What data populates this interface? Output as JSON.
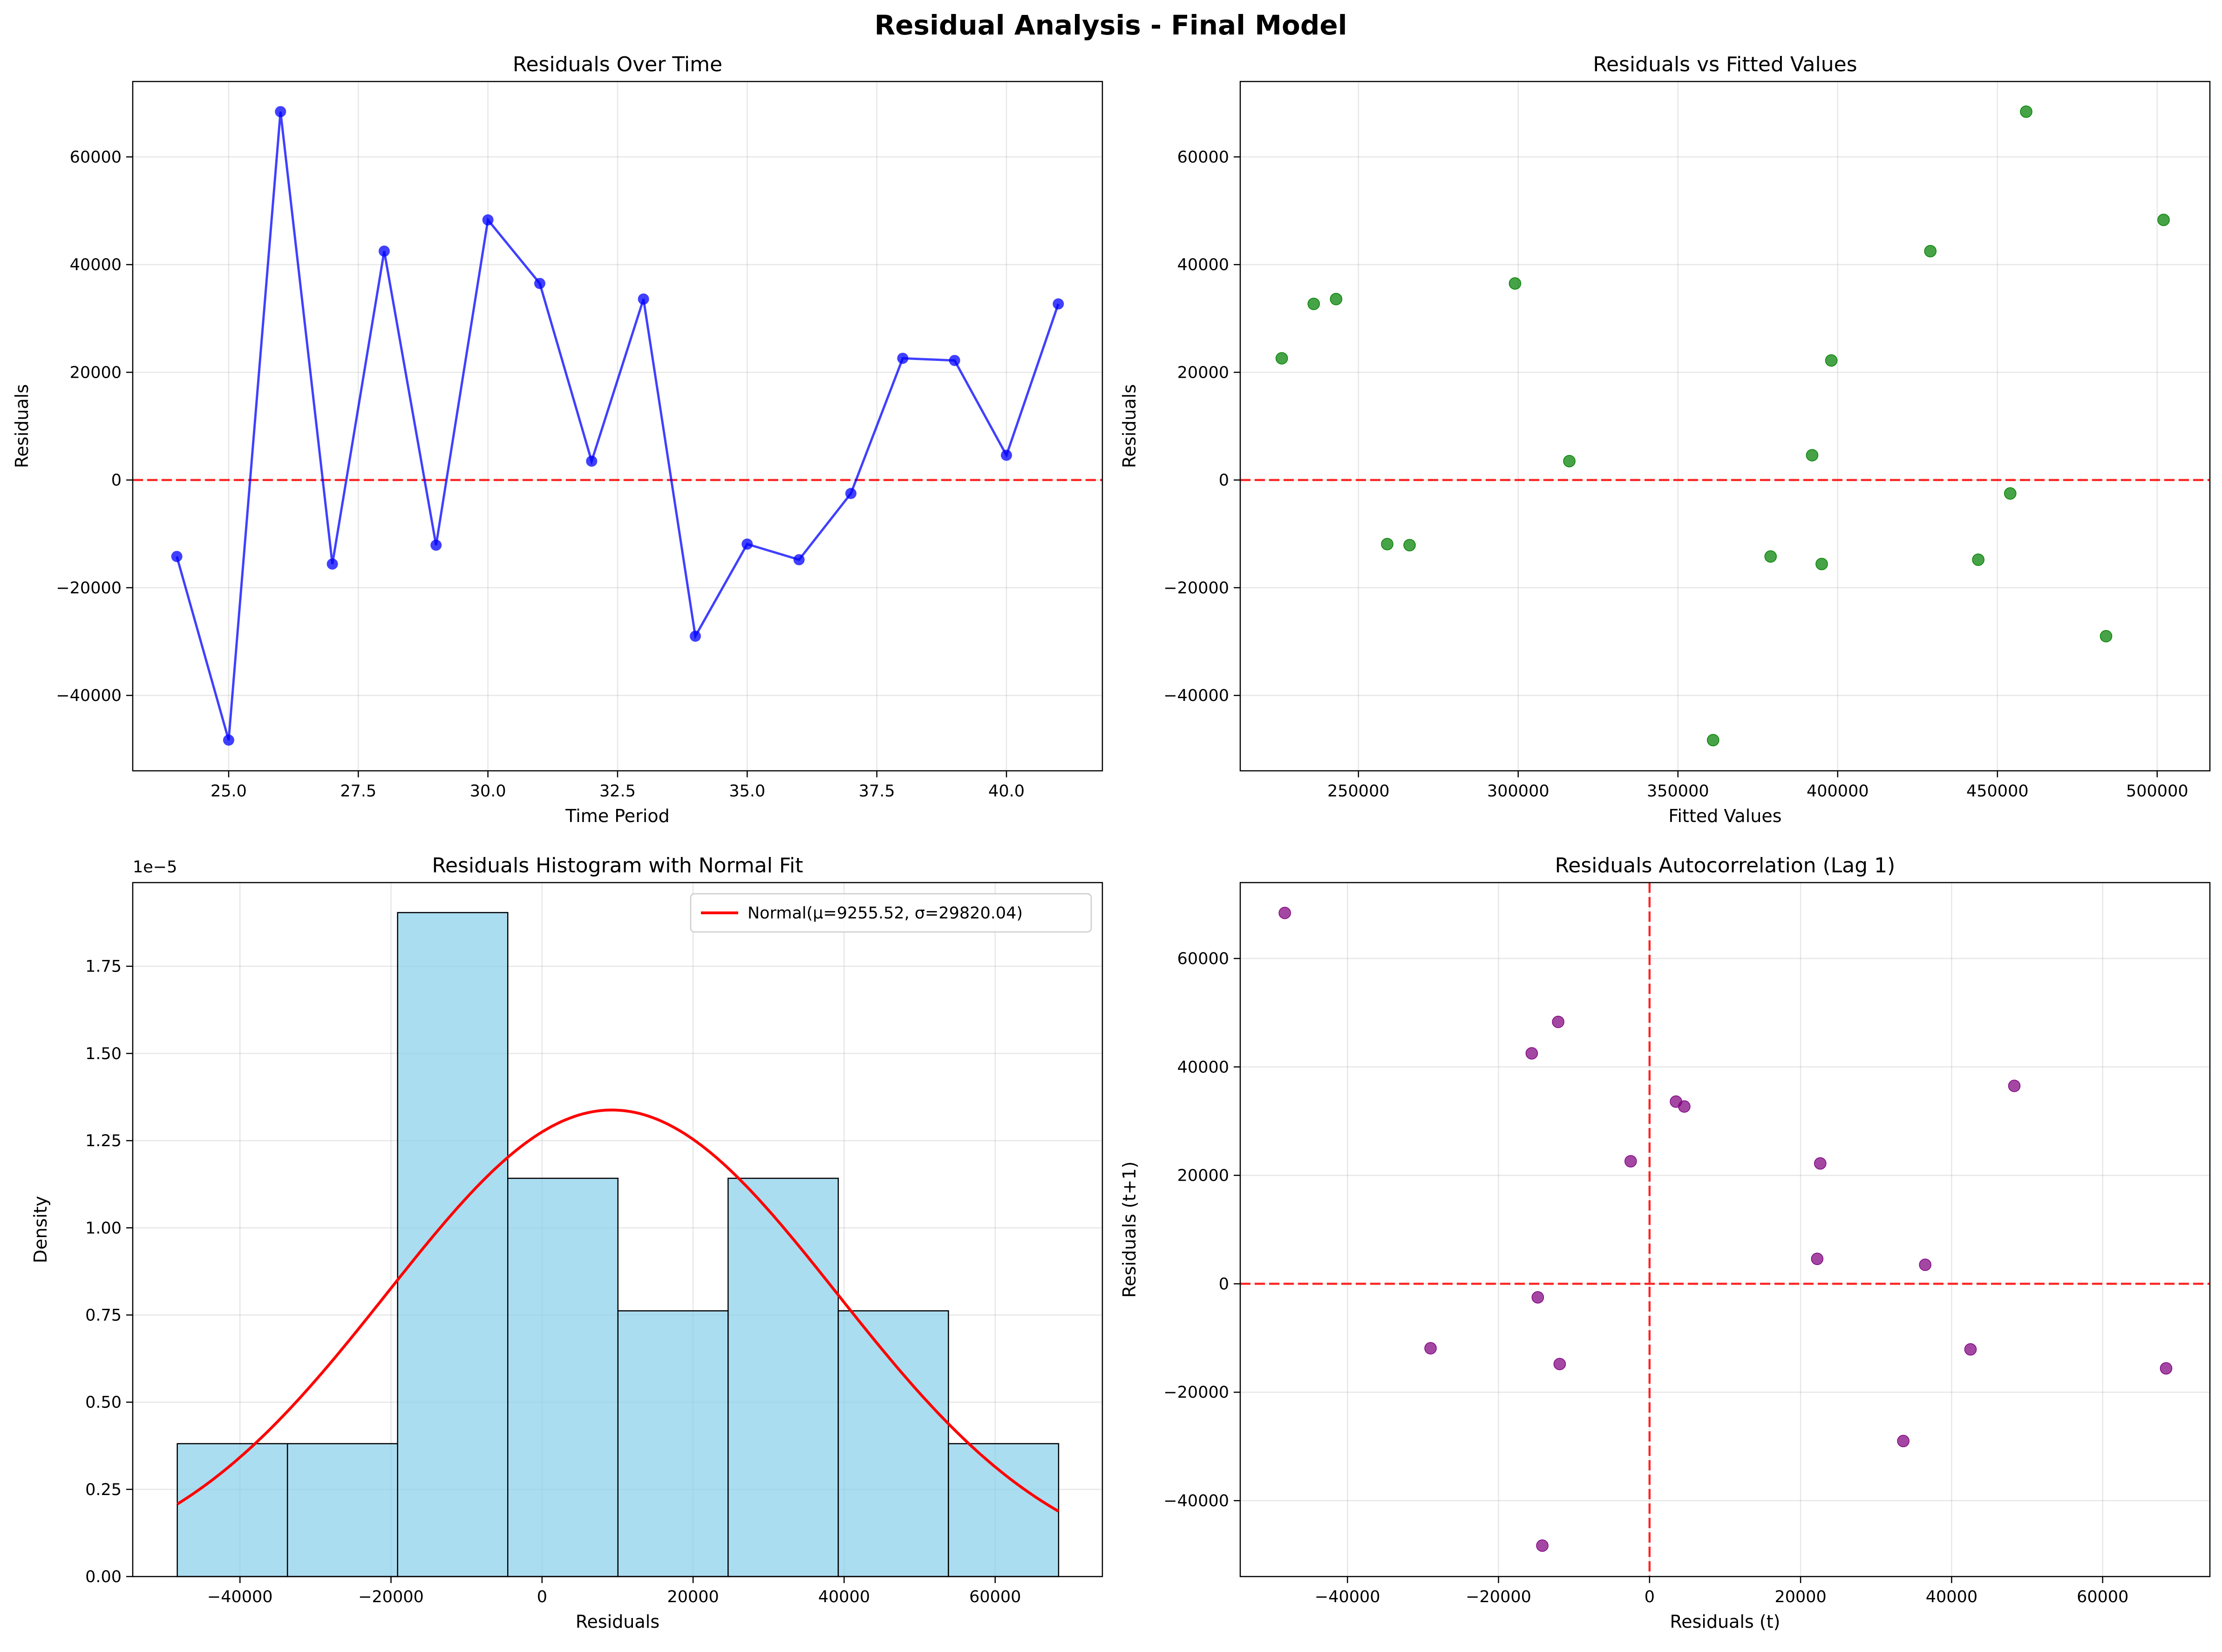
{
  "figure_title": "Residual Analysis - Final Model",
  "colors": {
    "line_blue": "#0000ff",
    "scatter_green": "#008000",
    "scatter_purple": "#800080",
    "hist_fill": "#87ceeb",
    "normal_curve": "#ff0000",
    "zero_line": "#ff0000"
  },
  "chart_data": [
    {
      "id": "over_time",
      "type": "line",
      "title": "Residuals Over Time",
      "xlabel": "Time Period",
      "ylabel": "Residuals",
      "xlim": [
        23.15,
        41.85
      ],
      "ylim": [
        -54000,
        74000
      ],
      "xticks": [
        25.0,
        27.5,
        30.0,
        32.5,
        35.0,
        37.5,
        40.0
      ],
      "xtick_labels": [
        "25.0",
        "27.5",
        "30.0",
        "32.5",
        "35.0",
        "37.5",
        "40.0"
      ],
      "yticks": [
        -40000,
        -20000,
        0,
        20000,
        40000,
        60000
      ],
      "ytick_labels": [
        "−40000",
        "−20000",
        "0",
        "20000",
        "40000",
        "60000"
      ],
      "grid": true,
      "reference_line_y": 0,
      "x": [
        24,
        25,
        26,
        27,
        28,
        29,
        30,
        31,
        32,
        33,
        34,
        35,
        36,
        37,
        38,
        39,
        40,
        41
      ],
      "y": [
        -14200,
        -48300,
        68400,
        -15600,
        42500,
        -12100,
        48300,
        36500,
        3500,
        33600,
        -29000,
        -11900,
        -14800,
        -2500,
        22600,
        22200,
        4600,
        32700
      ]
    },
    {
      "id": "vs_fitted",
      "type": "scatter",
      "title": "Residuals vs Fitted Values",
      "xlabel": "Fitted Values",
      "ylabel": "Residuals",
      "xlim": [
        213000,
        516500
      ],
      "ylim": [
        -54000,
        74000
      ],
      "xticks": [
        250000,
        300000,
        350000,
        400000,
        450000,
        500000
      ],
      "xtick_labels": [
        "250000",
        "300000",
        "350000",
        "400000",
        "450000",
        "500000"
      ],
      "yticks": [
        -40000,
        -20000,
        0,
        20000,
        40000,
        60000
      ],
      "ytick_labels": [
        "−40000",
        "−20000",
        "0",
        "20000",
        "40000",
        "60000"
      ],
      "grid": true,
      "reference_line_y": 0,
      "x": [
        379000,
        361000,
        459000,
        395000,
        429000,
        266000,
        502000,
        299000,
        316000,
        243000,
        484000,
        259000,
        444000,
        454000,
        226000,
        398000,
        392000,
        236000
      ],
      "y": [
        -14200,
        -48300,
        68400,
        -15600,
        42500,
        -12100,
        48300,
        36500,
        3500,
        33600,
        -29000,
        -11900,
        -14800,
        -2500,
        22600,
        22200,
        4600,
        32700
      ]
    },
    {
      "id": "histogram",
      "type": "bar",
      "title": "Residuals Histogram with Normal Fit",
      "xlabel": "Residuals",
      "ylabel": "Density",
      "y_scale_factor": "1e−5",
      "xlim": [
        -54200,
        74200
      ],
      "ylim": [
        0,
        1.99
      ],
      "xticks": [
        -40000,
        -20000,
        0,
        20000,
        40000,
        60000
      ],
      "xtick_labels": [
        "−40000",
        "−20000",
        "0",
        "20000",
        "40000",
        "60000"
      ],
      "yticks": [
        0,
        0.25,
        0.5,
        0.75,
        1.0,
        1.25,
        1.5,
        1.75
      ],
      "ytick_labels": [
        "0.00",
        "0.25",
        "0.50",
        "0.75",
        "1.00",
        "1.25",
        "1.50",
        "1.75"
      ],
      "grid": true,
      "bin_edges": [
        -48300,
        -33713,
        -19125,
        -4538,
        10050,
        24638,
        39225,
        53813,
        68400
      ],
      "bin_densities": [
        0.381,
        0.381,
        1.904,
        1.142,
        0.762,
        1.142,
        0.762,
        0.381
      ],
      "normal_fit": {
        "mu": 9255.52,
        "sigma": 29820.04
      },
      "legend_label": "Normal(μ=9255.52, σ=29820.04)",
      "legend_position": "top-right"
    },
    {
      "id": "autocorr",
      "type": "scatter",
      "title": "Residuals Autocorrelation (Lag 1)",
      "xlabel": "Residuals (t)",
      "ylabel": "Residuals (t+1)",
      "xlim": [
        -54200,
        74200
      ],
      "ylim": [
        -54000,
        74000
      ],
      "xticks": [
        -40000,
        -20000,
        0,
        20000,
        40000,
        60000
      ],
      "xtick_labels": [
        "−40000",
        "−20000",
        "0",
        "20000",
        "40000",
        "60000"
      ],
      "yticks": [
        -40000,
        -20000,
        0,
        20000,
        40000,
        60000
      ],
      "ytick_labels": [
        "−40000",
        "−20000",
        "0",
        "20000",
        "40000",
        "60000"
      ],
      "grid": true,
      "reference_line_y": 0,
      "reference_line_x": 0,
      "x": [
        -14200,
        -48300,
        68400,
        -15600,
        42500,
        -12100,
        48300,
        36500,
        3500,
        33600,
        -29000,
        -11900,
        -14800,
        -2500,
        22600,
        22200,
        4600
      ],
      "y": [
        -48300,
        68400,
        -15600,
        42500,
        -12100,
        48300,
        36500,
        3500,
        33600,
        -29000,
        -11900,
        -14800,
        -2500,
        22600,
        22200,
        4600,
        32700
      ]
    }
  ]
}
